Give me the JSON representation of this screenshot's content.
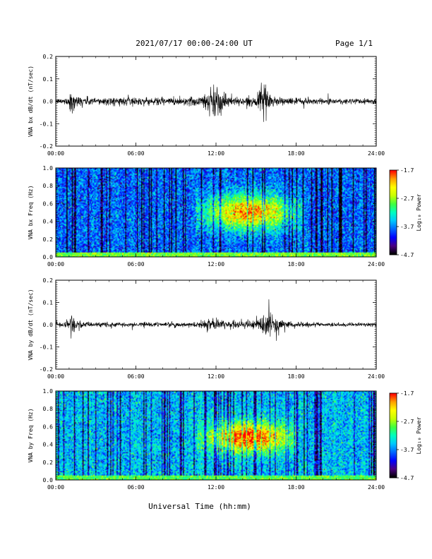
{
  "header": {
    "date_range": "2021/07/17  00:00-24:00 UT",
    "page": "Page 1/1"
  },
  "footer": {
    "xlabel": "Universal Time (hh:mm)"
  },
  "colorbar": {
    "label": "Log₁₀ Power",
    "ticks": [
      "-1.7",
      "-2.7",
      "-3.7",
      "-4.7"
    ],
    "range": [
      -4.7,
      -1.7
    ],
    "colormap": [
      "#000000",
      "#4b0082",
      "#0000ff",
      "#0066ff",
      "#00c8ff",
      "#00ffc0",
      "#40ff40",
      "#c8ff00",
      "#ffff00",
      "#ffa000",
      "#ff0000"
    ]
  },
  "x_ticks": [
    "00:00",
    "06:00",
    "12:00",
    "18:00",
    "24:00"
  ],
  "chart_data": [
    {
      "type": "line",
      "title": "",
      "ylabel": "VNA bx dB/dt (nT/sec)",
      "xlabel": "",
      "xlim": [
        0,
        24
      ],
      "ylim": [
        -0.2,
        0.2
      ],
      "y_ticks": [
        "0.2",
        "0.1",
        "0.0",
        "-0.1",
        "-0.2"
      ],
      "series": [
        {
          "envelope_hours": [
            0,
            1.0,
            1.1,
            1.5,
            2.5,
            3.5,
            5.5,
            8.0,
            10.0,
            11.0,
            11.5,
            12.0,
            12.5,
            13.0,
            14.0,
            15.0,
            15.6,
            15.7,
            16.0,
            16.6,
            17.0,
            18.0,
            20.0,
            22.0,
            24.0
          ],
          "envelope_amplitude": [
            0.01,
            0.02,
            0.08,
            0.03,
            0.02,
            0.02,
            0.02,
            0.02,
            0.02,
            0.035,
            0.07,
            0.09,
            0.05,
            0.025,
            0.02,
            0.02,
            0.08,
            0.07,
            0.04,
            0.025,
            0.02,
            0.015,
            0.015,
            0.015,
            0.015
          ]
        }
      ]
    },
    {
      "type": "heatmap",
      "title": "",
      "ylabel": "VNA bx Freq (Hz)",
      "xlabel": "",
      "xlim": [
        0,
        24
      ],
      "ylim": [
        0,
        1.0
      ],
      "y_ticks": [
        "1.0",
        "0.8",
        "0.6",
        "0.4",
        "0.2",
        "0.0"
      ],
      "zlim": [
        -4.7,
        -1.7
      ],
      "features": [
        {
          "kind": "background",
          "level": -3.8
        },
        {
          "kind": "low_freq_band",
          "freq_max": 0.05,
          "level": -2.8
        },
        {
          "kind": "emission",
          "t_start": 10.5,
          "t_end": 18.5,
          "f_low": 0.3,
          "f_high": 0.75,
          "peak_time": 14.5,
          "peak_freq": 0.5,
          "level": -2.6
        }
      ]
    },
    {
      "type": "line",
      "title": "",
      "ylabel": "VNA by dB/dt (nT/sec)",
      "xlabel": "",
      "xlim": [
        0,
        24
      ],
      "ylim": [
        -0.2,
        0.2
      ],
      "y_ticks": [
        "0.2",
        "0.1",
        "0.0",
        "-0.1",
        "-0.2"
      ],
      "series": [
        {
          "envelope_hours": [
            0,
            1.0,
            1.2,
            1.5,
            2.5,
            5.5,
            8.0,
            10.0,
            11.0,
            11.6,
            12.0,
            12.5,
            13.5,
            15.0,
            15.5,
            15.8,
            16.2,
            16.7,
            17.0,
            18.0,
            20.0,
            22.0,
            24.0
          ],
          "envelope_amplitude": [
            0.008,
            0.02,
            0.05,
            0.02,
            0.012,
            0.012,
            0.012,
            0.012,
            0.015,
            0.03,
            0.04,
            0.02,
            0.015,
            0.02,
            0.05,
            0.07,
            0.06,
            0.04,
            0.02,
            0.012,
            0.01,
            0.01,
            0.01
          ]
        }
      ]
    },
    {
      "type": "heatmap",
      "title": "",
      "ylabel": "VNA by Freq (Hz)",
      "xlabel": "",
      "xlim": [
        0,
        24
      ],
      "ylim": [
        0,
        1.0
      ],
      "y_ticks": [
        "1.0",
        "0.8",
        "0.6",
        "0.4",
        "0.2",
        "0.0"
      ],
      "zlim": [
        -4.7,
        -1.7
      ],
      "features": [
        {
          "kind": "background",
          "level": -3.5
        },
        {
          "kind": "low_freq_band",
          "freq_max": 0.05,
          "level": -2.9
        },
        {
          "kind": "emission",
          "t_start": 10.5,
          "t_end": 18.0,
          "f_low": 0.3,
          "f_high": 0.7,
          "peak_time": 14.5,
          "peak_freq": 0.48,
          "level": -2.3
        }
      ]
    }
  ]
}
